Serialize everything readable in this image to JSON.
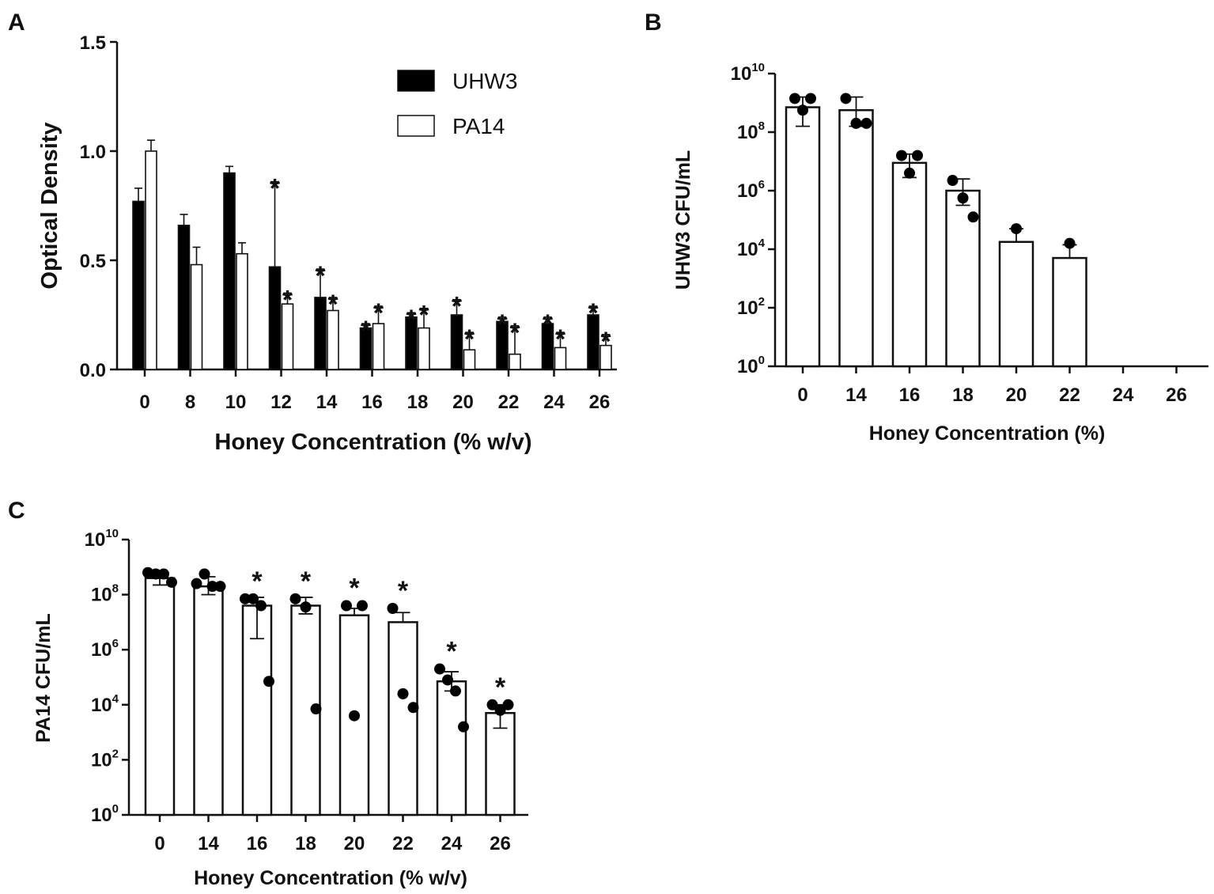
{
  "chart_data": [
    {
      "panel": "A",
      "type": "bar",
      "xlabel": "Honey Concentration (% w/v)",
      "ylabel": "Optical Density",
      "ylim": [
        0,
        1.5
      ],
      "yticks": [
        "0.0",
        "0.5",
        "1.0",
        "1.5"
      ],
      "yticks_values": [
        0,
        0.5,
        1.0,
        1.5
      ],
      "categories": [
        "0",
        "8",
        "10",
        "12",
        "14",
        "16",
        "18",
        "20",
        "22",
        "24",
        "26"
      ],
      "legend": {
        "position": "top-right",
        "entries": [
          "UHW3",
          "PA14"
        ]
      },
      "series": [
        {
          "name": "UHW3",
          "fill": "#000000",
          "values": [
            0.77,
            0.66,
            0.9,
            0.47,
            0.33,
            0.19,
            0.24,
            0.25,
            0.22,
            0.21,
            0.25
          ],
          "errors": [
            0.06,
            0.05,
            0.03,
            0.39,
            0.13,
            0.02,
            0.02,
            0.07,
            0.02,
            0.03,
            0.04
          ],
          "significant": [
            false,
            false,
            false,
            true,
            true,
            true,
            true,
            true,
            true,
            true,
            true
          ]
        },
        {
          "name": "PA14",
          "fill": "#ffffff",
          "values": [
            1.0,
            0.48,
            0.53,
            0.3,
            0.27,
            0.21,
            0.19,
            0.09,
            0.07,
            0.1,
            0.11
          ],
          "errors": [
            0.05,
            0.08,
            0.05,
            0.05,
            0.06,
            0.08,
            0.09,
            0.08,
            0.13,
            0.07,
            0.05
          ],
          "significant": [
            false,
            false,
            false,
            true,
            true,
            true,
            true,
            true,
            true,
            true,
            true
          ]
        }
      ],
      "significance_marker": "*"
    },
    {
      "panel": "B",
      "type": "bar",
      "scale": "log10",
      "xlabel": "Honey Concentration (%)",
      "ylabel": "UHW3 CFU/mL",
      "ylim": [
        0,
        10
      ],
      "ytick_base": "10",
      "ytick_exponents": [
        "0",
        "2",
        "4",
        "6",
        "8",
        "10"
      ],
      "categories": [
        "0",
        "14",
        "16",
        "18",
        "20",
        "22",
        "24",
        "26"
      ],
      "values_log10": [
        8.85,
        8.75,
        6.95,
        6.0,
        4.25,
        3.7,
        null,
        null
      ],
      "errors_log10": [
        [
          0.65,
          0.35
        ],
        [
          0.55,
          0.45
        ],
        [
          0.5,
          0.3
        ],
        [
          0.5,
          0.4
        ],
        [
          0,
          0.45
        ],
        [
          0,
          0.45
        ],
        null,
        null
      ],
      "points_log10": [
        [
          9.15,
          9.15,
          8.75
        ],
        [
          9.15,
          8.3,
          8.3
        ],
        [
          7.2,
          7.2,
          6.6
        ],
        [
          6.35,
          5.75,
          5.1
        ],
        [
          4.7
        ],
        [
          4.2
        ],
        [],
        []
      ]
    },
    {
      "panel": "C",
      "type": "bar",
      "scale": "log10",
      "xlabel": "Honey Concentration (% w/v)",
      "ylabel": "PA14 CFU/mL",
      "ylim": [
        0,
        10
      ],
      "ytick_base": "10",
      "ytick_exponents": [
        "0",
        "2",
        "4",
        "6",
        "8",
        "10"
      ],
      "categories": [
        "0",
        "14",
        "16",
        "18",
        "20",
        "22",
        "24",
        "26"
      ],
      "values_log10": [
        8.6,
        8.3,
        7.6,
        7.6,
        7.25,
        7.0,
        4.85,
        3.7
      ],
      "errors_log10": [
        [
          0.25,
          0.1
        ],
        [
          0.3,
          0.35
        ],
        [
          1.2,
          0.3
        ],
        [
          0.3,
          0.3
        ],
        [
          0,
          0.25
        ],
        [
          0,
          0.35
        ],
        [
          0.35,
          0.35
        ],
        [
          0.55,
          0.3
        ]
      ],
      "points_log10": [
        [
          8.8,
          8.75,
          8.75,
          8.45
        ],
        [
          8.4,
          8.75,
          8.3,
          8.3
        ],
        [
          7.85,
          7.85,
          7.6,
          4.85
        ],
        [
          7.85,
          7.55,
          3.85
        ],
        [
          7.6,
          7.6,
          3.6
        ],
        [
          7.5,
          4.4,
          3.9
        ],
        [
          5.3,
          4.9,
          4.5,
          3.2
        ],
        [
          4.0,
          4.0,
          3.8
        ]
      ],
      "significant": [
        false,
        false,
        true,
        true,
        true,
        true,
        true,
        true
      ],
      "significance_marker": "*"
    }
  ]
}
